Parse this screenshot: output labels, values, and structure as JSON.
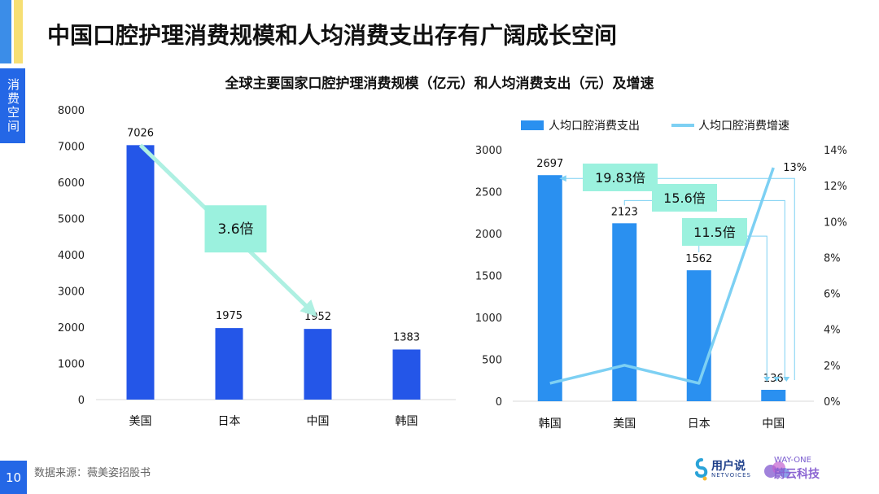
{
  "side_tab": "消费空间",
  "page_title": "中国口腔护理消费规模和人均消费支出存有广阔成长空间",
  "chart_title": "全球主要国家口腔护理消费规模（亿元）和人均消费支出（元）及增速",
  "page_number": "10",
  "source": "数据来源：薇美姿招股书",
  "logos": {
    "netvoices_cn": "用户说",
    "netvoices_en": "NETVOICES",
    "wayone_en": "WAY-ONE",
    "wayone_cn": "蔚云科技"
  },
  "colors": {
    "bar_left": "#2456e8",
    "bar_right": "#2a90f0",
    "line": "#7dd0f3",
    "callout_fill": "#9bf1de",
    "arrow": "#aef0e2"
  },
  "chart_data": [
    {
      "type": "bar",
      "categories": [
        "美国",
        "日本",
        "中国",
        "韩国"
      ],
      "values": [
        7026,
        1975,
        1952,
        1383
      ],
      "ylim": [
        0,
        8000
      ],
      "yticks": [
        0,
        1000,
        2000,
        3000,
        4000,
        5000,
        6000,
        7000,
        8000
      ],
      "annotation": "3.6倍"
    },
    {
      "type": "bar+line",
      "categories": [
        "韩国",
        "美国",
        "日本",
        "中国"
      ],
      "series": [
        {
          "name": "人均口腔消费支出",
          "type": "bar",
          "axis": "left",
          "values": [
            2697,
            2123,
            1562,
            136
          ]
        },
        {
          "name": "人均口腔消费增速",
          "type": "line",
          "axis": "right",
          "values": [
            1.0,
            2.0,
            1.0,
            13.0
          ]
        }
      ],
      "ylim": [
        0,
        3000
      ],
      "yticks": [
        0,
        500,
        1000,
        1500,
        2000,
        2500,
        3000
      ],
      "y2lim": [
        0,
        14
      ],
      "y2ticks": [
        "0%",
        "2%",
        "4%",
        "6%",
        "8%",
        "10%",
        "12%",
        "14%"
      ],
      "line_label": "13%",
      "annotations": [
        "19.83倍",
        "15.6倍",
        "11.5倍"
      ]
    }
  ]
}
